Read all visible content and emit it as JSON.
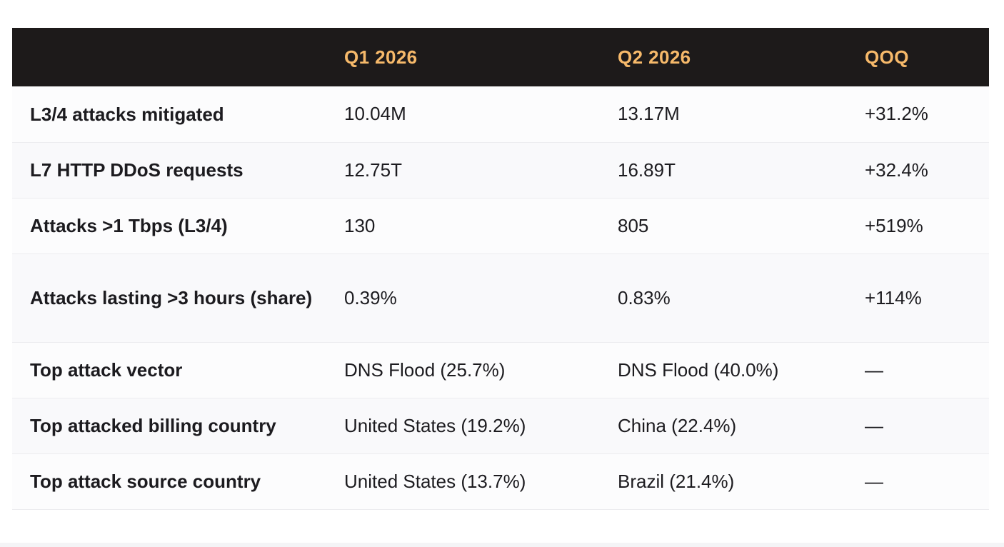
{
  "table": {
    "headers": [
      "",
      "Q1 2026",
      "Q2 2026",
      "QOQ"
    ],
    "rows": [
      {
        "metric": "L3/4 attacks mitigated",
        "q1": "10.04M",
        "q2": "13.17M",
        "qoq": "+31.2%"
      },
      {
        "metric": "L7 HTTP DDoS requests",
        "q1": "12.75T",
        "q2": "16.89T",
        "qoq": "+32.4%"
      },
      {
        "metric": "Attacks >1 Tbps (L3/4)",
        "q1": "130",
        "q2": "805",
        "qoq": "+519%"
      },
      {
        "metric": "Attacks lasting >3 hours (share)",
        "q1": "0.39%",
        "q2": "0.83%",
        "qoq": "+114%"
      },
      {
        "metric": "Top attack vector",
        "q1": "DNS Flood (25.7%)",
        "q2": "DNS Flood (40.0%)",
        "qoq": "—"
      },
      {
        "metric": "Top attacked billing country",
        "q1": "United States (19.2%)",
        "q2": "China (22.4%)",
        "qoq": "—"
      },
      {
        "metric": "Top attack source country",
        "q1": "United States (13.7%)",
        "q2": "Brazil (21.4%)",
        "qoq": "—"
      }
    ]
  },
  "colors": {
    "header_bg": "#1d1a1a",
    "header_text": "#f6b96a",
    "row_bg": "#fcfcfd",
    "row_alt_bg": "#f9f9fb"
  }
}
